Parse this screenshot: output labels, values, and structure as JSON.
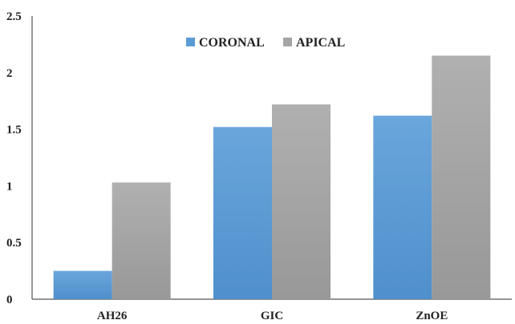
{
  "chart_data": {
    "type": "bar",
    "categories": [
      "AH26",
      "GIC",
      "ZnOE"
    ],
    "series": [
      {
        "name": "CORONAL",
        "values": [
          0.25,
          1.52,
          1.62
        ],
        "color": "#5b9bd5"
      },
      {
        "name": "APICAL",
        "values": [
          1.03,
          1.72,
          2.15
        ],
        "color": "#a5a5a5"
      }
    ],
    "yticks": [
      "0",
      "0.5",
      "1",
      "1.5",
      "2",
      "2.5"
    ],
    "ylim": [
      0,
      2.5
    ],
    "legend_position": "top-center",
    "grid": false
  }
}
